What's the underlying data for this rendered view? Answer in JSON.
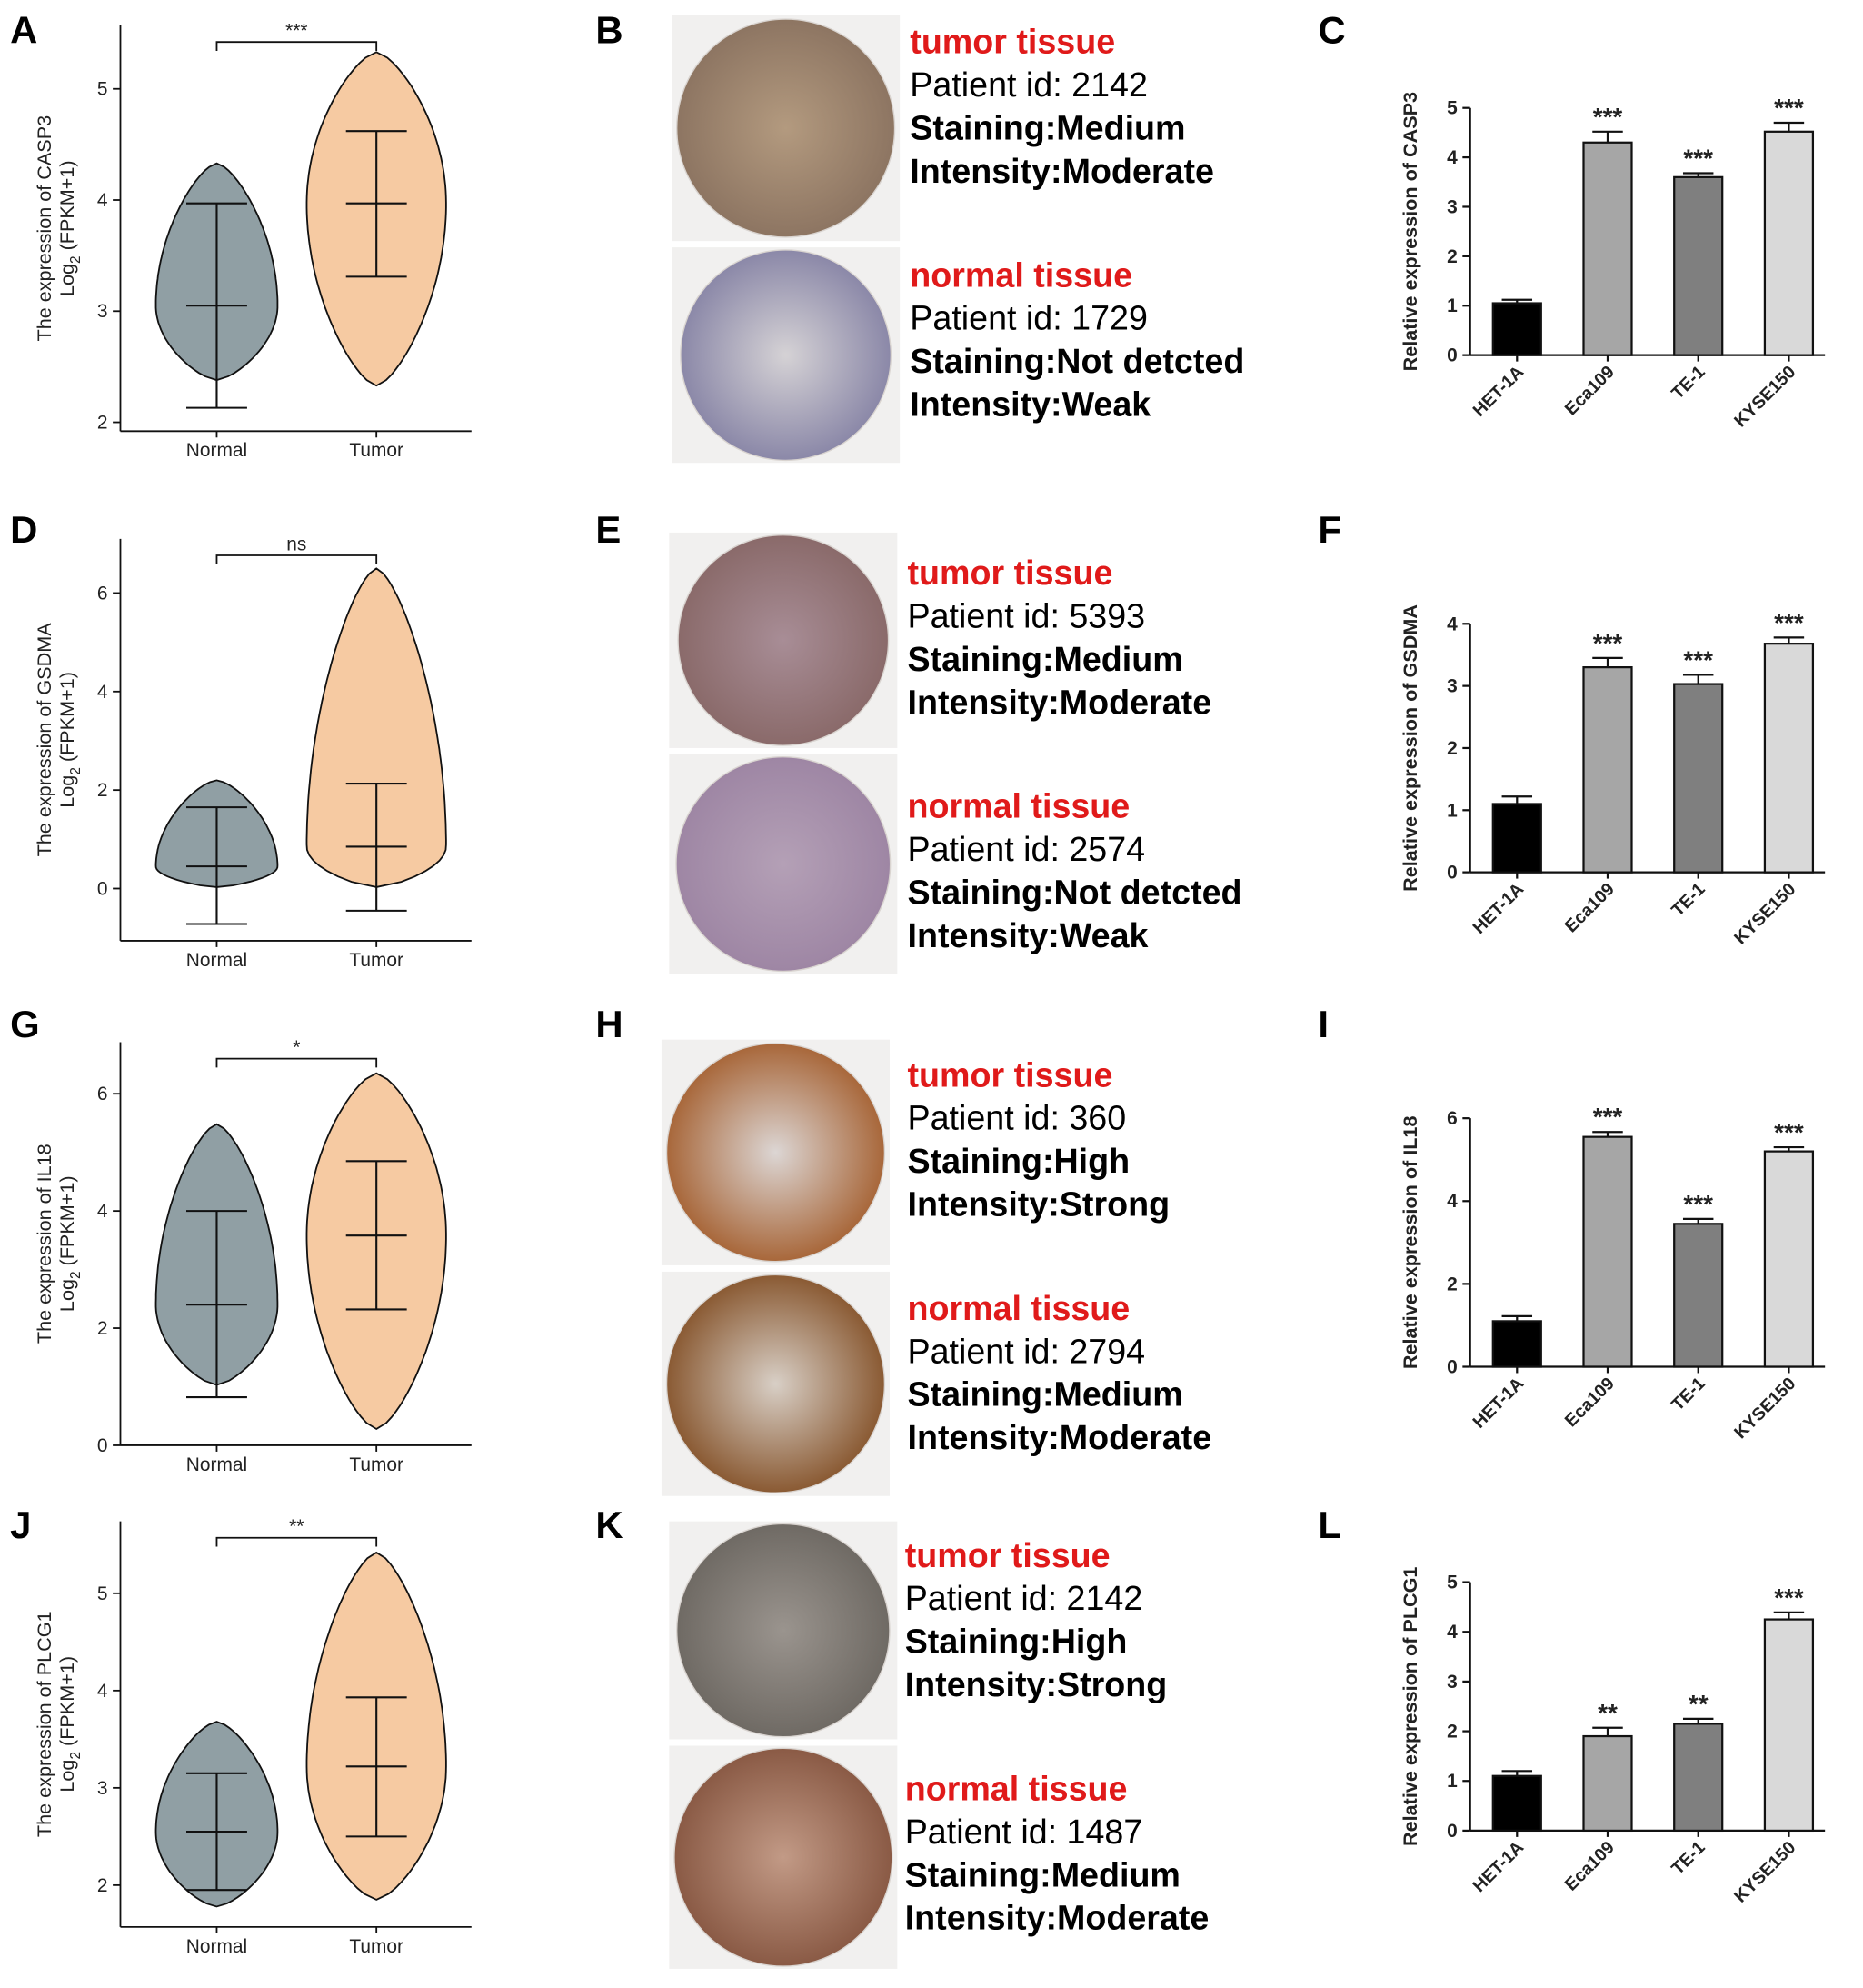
{
  "chart_data": [
    {
      "type": "violin",
      "panel_label": "A",
      "ylabel": "The expression of CASP3",
      "ylabel_log": "Log",
      "ylabel_sub": "2",
      "ylabel_rest": " (FPKM+1)",
      "categories": [
        "Normal",
        "Tumor"
      ],
      "ylim": [
        1.92,
        5.57
      ],
      "yticks": [
        2,
        3,
        4,
        5
      ],
      "significance": "***",
      "violins": [
        {
          "color": "#909fa4",
          "min": 2.38,
          "max": 4.33,
          "median": 3.05,
          "whisker_low": 2.13,
          "whisker_high": 3.97
        },
        {
          "color": "#f6caa2",
          "min": 2.33,
          "max": 5.33,
          "median": 3.97,
          "whisker_low": 3.31,
          "whisker_high": 4.62
        }
      ]
    },
    {
      "type": "bar",
      "panel_label": "C",
      "ylabel": "Relative expression of CASP3",
      "categories": [
        "HET-1A",
        "Eca109",
        "TE-1",
        "KYSE150"
      ],
      "values": [
        1.05,
        4.3,
        3.6,
        4.52
      ],
      "errors": [
        0.07,
        0.22,
        0.08,
        0.18
      ],
      "annotations": [
        null,
        "***",
        "***",
        "***"
      ],
      "colors": [
        "#000000",
        "#a6a6a6",
        "#7f7f7f",
        "#d9d9d9"
      ],
      "ylim": [
        0,
        5
      ],
      "yticks": [
        0,
        1,
        2,
        3,
        4,
        5
      ]
    },
    {
      "type": "violin",
      "panel_label": "D",
      "ylabel": "The expression of GSDMA",
      "ylabel_log": "Log",
      "ylabel_sub": "2",
      "ylabel_rest": " (FPKM+1)",
      "categories": [
        "Normal",
        "Tumor"
      ],
      "ylim": [
        -1.06,
        7.1
      ],
      "yticks": [
        0,
        2,
        4,
        6
      ],
      "significance": "ns",
      "violins": [
        {
          "color": "#909fa4",
          "min": 0.03,
          "max": 2.2,
          "median": 0.45,
          "whisker_low": -0.72,
          "whisker_high": 1.65
        },
        {
          "color": "#f6caa2",
          "min": 0.03,
          "max": 6.5,
          "median": 0.85,
          "whisker_low": -0.45,
          "whisker_high": 2.13
        }
      ]
    },
    {
      "type": "bar",
      "panel_label": "F",
      "ylabel": "Relative expression of GSDMA",
      "categories": [
        "HET-1A",
        "Eca109",
        "TE-1",
        "KYSE150"
      ],
      "values": [
        1.1,
        3.3,
        3.03,
        3.68
      ],
      "errors": [
        0.12,
        0.15,
        0.15,
        0.1
      ],
      "annotations": [
        null,
        "***",
        "***",
        "***"
      ],
      "colors": [
        "#000000",
        "#a6a6a6",
        "#7f7f7f",
        "#d9d9d9"
      ],
      "ylim": [
        0,
        4
      ],
      "yticks": [
        0,
        1,
        2,
        3,
        4
      ]
    },
    {
      "type": "violin",
      "panel_label": "G",
      "ylabel": "The expression of IL18",
      "ylabel_log": "Log",
      "ylabel_sub": "2",
      "ylabel_rest": " (FPKM+1)",
      "categories": [
        "Normal",
        "Tumor"
      ],
      "ylim": [
        0,
        6.88
      ],
      "yticks": [
        0,
        2,
        4,
        6
      ],
      "significance": "*",
      "violins": [
        {
          "color": "#909fa4",
          "min": 1.03,
          "max": 5.48,
          "median": 2.4,
          "whisker_low": 0.82,
          "whisker_high": 4.0
        },
        {
          "color": "#f6caa2",
          "min": 0.28,
          "max": 6.35,
          "median": 3.58,
          "whisker_low": 2.32,
          "whisker_high": 4.85
        }
      ]
    },
    {
      "type": "bar",
      "panel_label": "I",
      "ylabel": "Relative expression of IL18",
      "categories": [
        "HET-1A",
        "Eca109",
        "TE-1",
        "KYSE150"
      ],
      "values": [
        1.1,
        5.55,
        3.45,
        5.2
      ],
      "errors": [
        0.12,
        0.12,
        0.12,
        0.1
      ],
      "annotations": [
        null,
        "***",
        "***",
        "***"
      ],
      "colors": [
        "#000000",
        "#a6a6a6",
        "#7f7f7f",
        "#d9d9d9"
      ],
      "ylim": [
        0,
        6
      ],
      "yticks": [
        0,
        2,
        4,
        6
      ]
    },
    {
      "type": "violin",
      "panel_label": "J",
      "ylabel": "The expression of PLCG1",
      "ylabel_log": "Log",
      "ylabel_sub": "2",
      "ylabel_rest": " (FPKM+1)",
      "categories": [
        "Normal",
        "Tumor"
      ],
      "ylim": [
        1.57,
        5.74
      ],
      "yticks": [
        2,
        3,
        4,
        5
      ],
      "significance": "**",
      "violins": [
        {
          "color": "#909fa4",
          "min": 1.78,
          "max": 3.68,
          "median": 2.55,
          "whisker_low": 1.95,
          "whisker_high": 3.15
        },
        {
          "color": "#f6caa2",
          "min": 1.85,
          "max": 5.42,
          "median": 3.22,
          "whisker_low": 2.5,
          "whisker_high": 3.93
        }
      ]
    },
    {
      "type": "bar",
      "panel_label": "L",
      "ylabel": "Relative expression of PLCG1",
      "categories": [
        "HET-1A",
        "Eca109",
        "TE-1",
        "KYSE150"
      ],
      "values": [
        1.1,
        1.9,
        2.15,
        4.25
      ],
      "errors": [
        0.1,
        0.17,
        0.1,
        0.14
      ],
      "annotations": [
        null,
        "**",
        "**",
        "***"
      ],
      "colors": [
        "#000000",
        "#a6a6a6",
        "#7f7f7f",
        "#d9d9d9"
      ],
      "ylim": [
        0,
        5
      ],
      "yticks": [
        0,
        1,
        2,
        3,
        4,
        5
      ]
    }
  ],
  "ihc": [
    {
      "panel_label": "B",
      "tumor": {
        "title": "tumor tissue",
        "lines": [
          "Patient id: 2142",
          "Staining:Medium",
          "Intensity:Moderate"
        ]
      },
      "normal": {
        "title": "normal tissue",
        "lines": [
          "Patient id: 1729",
          "Staining:Not detcted",
          "Intensity:Weak"
        ]
      }
    },
    {
      "panel_label": "E",
      "tumor": {
        "title": "tumor tissue",
        "lines": [
          "Patient id: 5393",
          "Staining:Medium",
          "Intensity:Moderate"
        ]
      },
      "normal": {
        "title": "normal tissue",
        "lines": [
          "Patient id: 2574",
          "Staining:Not detcted",
          "Intensity:Weak"
        ]
      }
    },
    {
      "panel_label": "H",
      "tumor": {
        "title": "tumor tissue",
        "lines": [
          "Patient id: 360",
          "Staining:High",
          "Intensity:Strong"
        ]
      },
      "normal": {
        "title": "normal tissue",
        "lines": [
          "Patient id: 2794",
          "Staining:Medium",
          "Intensity:Moderate"
        ]
      }
    },
    {
      "panel_label": "K",
      "tumor": {
        "title": "tumor tissue",
        "lines": [
          "Patient id: 2142",
          "Staining:High",
          "Intensity:Strong"
        ]
      },
      "normal": {
        "title": "normal tissue",
        "lines": [
          "Patient id: 1487",
          "Staining:Medium",
          "Intensity:Moderate"
        ]
      }
    }
  ]
}
